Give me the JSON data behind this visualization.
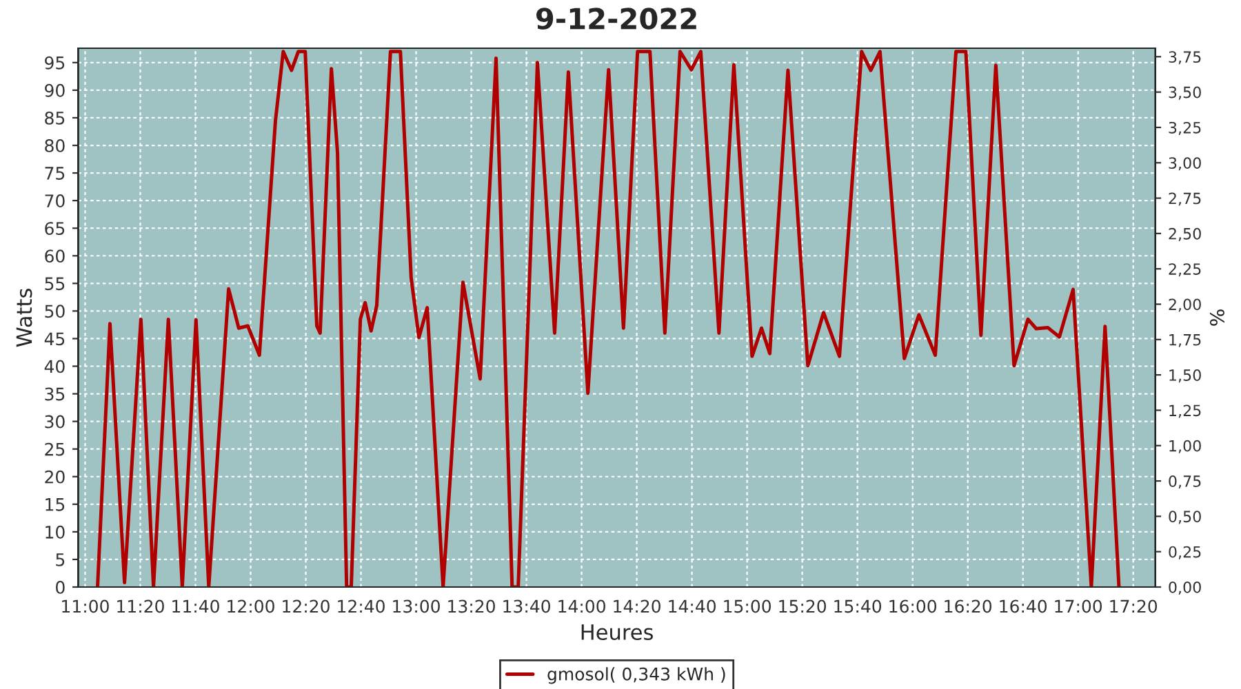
{
  "chart_data": {
    "type": "line",
    "title": "9-12-2022",
    "xlabel": "Heures",
    "ylabel": "Watts",
    "y2label": "%",
    "x": [
      11.075,
      11.15,
      11.238,
      11.337,
      11.413,
      11.503,
      11.587,
      11.67,
      11.747,
      11.867,
      11.928,
      11.983,
      12.053,
      12.15,
      12.197,
      12.247,
      12.288,
      12.33,
      12.4,
      12.42,
      12.488,
      12.525,
      12.58,
      12.608,
      12.663,
      12.692,
      12.728,
      12.762,
      12.845,
      12.905,
      12.97,
      13.017,
      13.067,
      13.163,
      13.283,
      13.387,
      13.483,
      13.58,
      13.617,
      13.733,
      13.837,
      13.92,
      14.038,
      14.163,
      14.253,
      14.338,
      14.413,
      14.503,
      14.595,
      14.663,
      14.72,
      14.83,
      14.92,
      15.03,
      15.087,
      15.137,
      15.247,
      15.367,
      15.462,
      15.558,
      15.692,
      15.747,
      15.803,
      15.95,
      16.038,
      16.137,
      16.262,
      16.322,
      16.413,
      16.503,
      16.613,
      16.697,
      16.747,
      16.817,
      16.887,
      16.97,
      17.08,
      17.163,
      17.247
    ],
    "series": [
      {
        "name": "gmosol( 0,343 kWh )",
        "color": "#b00000",
        "values": [
          0,
          47.7,
          0.8,
          48.5,
          0,
          48.5,
          0,
          48.4,
          0,
          54,
          46.9,
          47.3,
          42,
          84.5,
          97,
          93.6,
          97,
          97,
          47.3,
          46,
          93.9,
          78.7,
          0,
          0,
          48.5,
          51.5,
          46.4,
          51,
          97,
          97,
          56,
          45.2,
          50.6,
          0,
          55.2,
          37.7,
          95.8,
          0,
          0,
          95,
          46,
          93.3,
          35.1,
          93.7,
          46.9,
          97,
          97,
          46,
          97,
          93.7,
          97,
          46,
          94.6,
          41.8,
          46.9,
          42.3,
          93.6,
          40.1,
          49.7,
          41.8,
          97,
          93.6,
          97,
          41.4,
          49.3,
          42,
          97,
          97,
          45.6,
          94.5,
          40.1,
          48.5,
          46.8,
          47,
          45.3,
          53.9,
          0,
          47.2,
          0
        ]
      }
    ],
    "xlim": [
      10.958,
      17.467
    ],
    "xticks": [
      {
        "value": 11,
        "label": "11:00"
      },
      {
        "value": 11.3333,
        "label": "11:20"
      },
      {
        "value": 11.6667,
        "label": "11:40"
      },
      {
        "value": 12,
        "label": "12:00"
      },
      {
        "value": 12.3333,
        "label": "12:20"
      },
      {
        "value": 12.6667,
        "label": "12:40"
      },
      {
        "value": 13,
        "label": "13:00"
      },
      {
        "value": 13.3333,
        "label": "13:20"
      },
      {
        "value": 13.6667,
        "label": "13:40"
      },
      {
        "value": 14,
        "label": "14:00"
      },
      {
        "value": 14.3333,
        "label": "14:20"
      },
      {
        "value": 14.6667,
        "label": "14:40"
      },
      {
        "value": 15,
        "label": "15:00"
      },
      {
        "value": 15.3333,
        "label": "15:20"
      },
      {
        "value": 15.6667,
        "label": "15:40"
      },
      {
        "value": 16,
        "label": "16:00"
      },
      {
        "value": 16.3333,
        "label": "16:20"
      },
      {
        "value": 16.6667,
        "label": "16:40"
      },
      {
        "value": 17,
        "label": "17:00"
      },
      {
        "value": 17.3333,
        "label": "17:20"
      }
    ],
    "ylim": [
      0,
      97.6
    ],
    "yticks": [
      0,
      5,
      10,
      15,
      20,
      25,
      30,
      35,
      40,
      45,
      50,
      55,
      60,
      65,
      70,
      75,
      80,
      85,
      90,
      95
    ],
    "y2lim": [
      0,
      3.81
    ],
    "y2ticks": [
      {
        "value": 0,
        "label": "0,00"
      },
      {
        "value": 0.25,
        "label": "0,25"
      },
      {
        "value": 0.5,
        "label": "0,50"
      },
      {
        "value": 0.75,
        "label": "0,75"
      },
      {
        "value": 1,
        "label": "1,00"
      },
      {
        "value": 1.25,
        "label": "1,25"
      },
      {
        "value": 1.5,
        "label": "1,50"
      },
      {
        "value": 1.75,
        "label": "1,75"
      },
      {
        "value": 2,
        "label": "2,00"
      },
      {
        "value": 2.25,
        "label": "2,25"
      },
      {
        "value": 2.5,
        "label": "2,50"
      },
      {
        "value": 2.75,
        "label": "2,75"
      },
      {
        "value": 3,
        "label": "3,00"
      },
      {
        "value": 3.25,
        "label": "3,25"
      },
      {
        "value": 3.5,
        "label": "3,50"
      },
      {
        "value": 3.75,
        "label": "3,75"
      }
    ],
    "grid": true,
    "legend": "bottom",
    "marker": "none",
    "line_style": "solid"
  }
}
